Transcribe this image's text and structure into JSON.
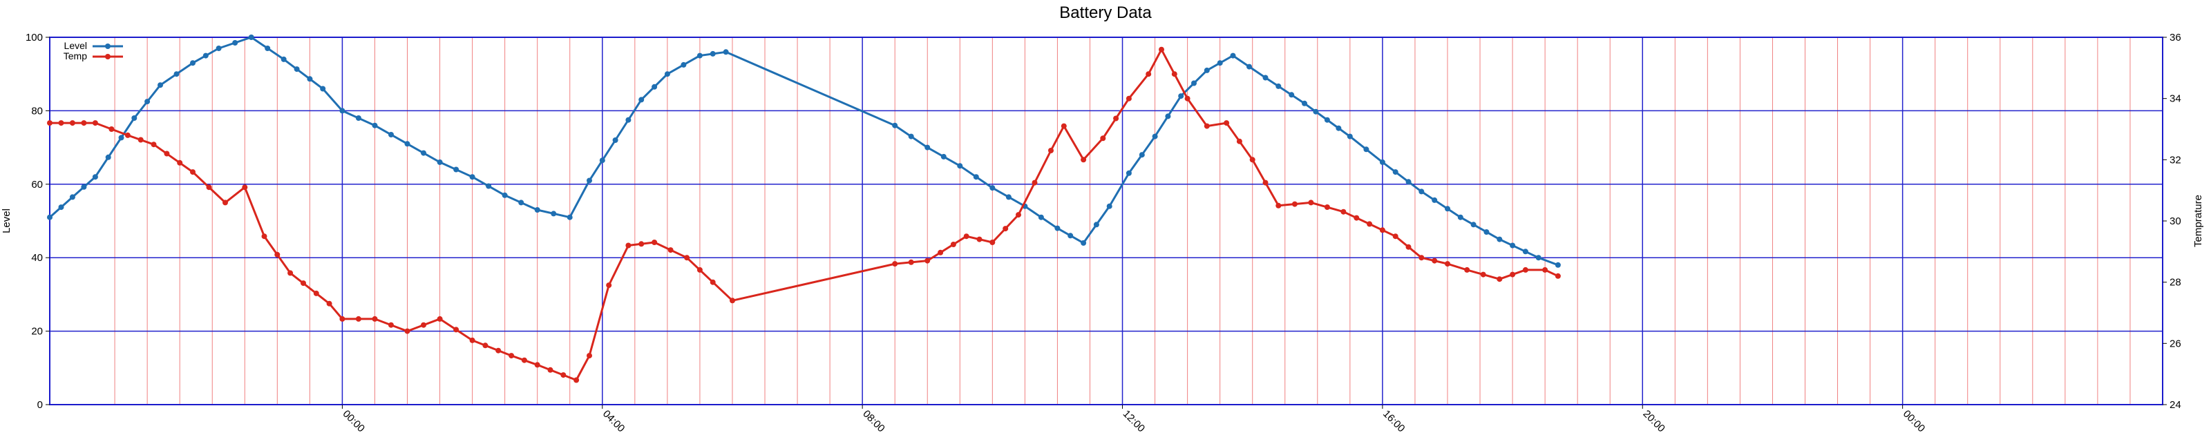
{
  "chart_data": {
    "type": "line",
    "title": "Battery Data",
    "ylabel": "Level",
    "y2label": "Temprature",
    "ylim": [
      0,
      100
    ],
    "y2lim": [
      24,
      36
    ],
    "yticks": [
      "0",
      "20",
      "40",
      "60",
      "80",
      "100"
    ],
    "y2ticks": [
      "24",
      "26",
      "28",
      "30",
      "32",
      "34",
      "36"
    ],
    "xrange_hours": [
      -4.5,
      28
    ],
    "xticks": [
      {
        "label": "00:00",
        "hour": 0
      },
      {
        "label": "04:00",
        "hour": 4
      },
      {
        "label": "08:00",
        "hour": 8
      },
      {
        "label": "12:00",
        "hour": 12
      },
      {
        "label": "16:00",
        "hour": 16
      },
      {
        "label": "20:00",
        "hour": 20
      },
      {
        "label": "00:00",
        "hour": 24
      }
    ],
    "grid": true,
    "legend_position": "top-left",
    "series": [
      {
        "name": "Level",
        "axis": "left",
        "color": "#1f6fb2",
        "points": [
          [
            -4.5,
            51
          ],
          [
            -3.8,
            62
          ],
          [
            -3.2,
            78
          ],
          [
            -2.8,
            87
          ],
          [
            -2.3,
            93
          ],
          [
            -1.9,
            97
          ],
          [
            -1.4,
            100
          ],
          [
            -0.9,
            94
          ],
          [
            -0.3,
            86
          ],
          [
            0.0,
            80
          ],
          [
            0.5,
            76
          ],
          [
            1.0,
            71
          ],
          [
            1.5,
            66
          ],
          [
            2.0,
            62
          ],
          [
            2.5,
            57
          ],
          [
            3.0,
            53
          ],
          [
            3.5,
            51
          ],
          [
            3.8,
            61
          ],
          [
            4.2,
            72
          ],
          [
            4.6,
            83
          ],
          [
            5.0,
            90
          ],
          [
            5.5,
            95
          ],
          [
            5.9,
            96
          ],
          [
            8.5,
            76
          ],
          [
            9.0,
            70
          ],
          [
            9.5,
            65
          ],
          [
            10.0,
            59
          ],
          [
            10.5,
            54
          ],
          [
            11.0,
            48
          ],
          [
            11.4,
            44
          ],
          [
            11.8,
            54
          ],
          [
            12.1,
            63
          ],
          [
            12.5,
            73
          ],
          [
            12.9,
            84
          ],
          [
            13.3,
            91
          ],
          [
            13.7,
            95
          ],
          [
            14.2,
            89
          ],
          [
            14.8,
            82
          ],
          [
            15.5,
            73
          ],
          [
            16.0,
            66
          ],
          [
            16.6,
            58
          ],
          [
            17.2,
            51
          ],
          [
            17.8,
            45
          ],
          [
            18.4,
            40
          ],
          [
            18.7,
            38
          ]
        ]
      },
      {
        "name": "Temp",
        "axis": "right",
        "color": "#d9261c",
        "points": [
          [
            -4.5,
            33.2
          ],
          [
            -3.8,
            33.2
          ],
          [
            -3.3,
            32.8
          ],
          [
            -2.9,
            32.5
          ],
          [
            -2.3,
            31.6
          ],
          [
            -1.8,
            30.6
          ],
          [
            -1.5,
            31.1
          ],
          [
            -1.2,
            29.5
          ],
          [
            -0.8,
            28.3
          ],
          [
            -0.2,
            27.3
          ],
          [
            0.0,
            26.8
          ],
          [
            0.5,
            26.8
          ],
          [
            1.0,
            26.4
          ],
          [
            1.5,
            26.8
          ],
          [
            2.0,
            26.1
          ],
          [
            2.6,
            25.6
          ],
          [
            3.0,
            25.3
          ],
          [
            3.6,
            24.8
          ],
          [
            3.8,
            25.6
          ],
          [
            4.1,
            27.9
          ],
          [
            4.4,
            29.2
          ],
          [
            4.8,
            29.3
          ],
          [
            5.3,
            28.8
          ],
          [
            5.7,
            28.0
          ],
          [
            6.0,
            27.4
          ],
          [
            8.5,
            28.6
          ],
          [
            9.0,
            28.7
          ],
          [
            9.6,
            29.5
          ],
          [
            10.0,
            29.3
          ],
          [
            10.4,
            30.2
          ],
          [
            10.9,
            32.3
          ],
          [
            11.1,
            33.1
          ],
          [
            11.4,
            32.0
          ],
          [
            11.7,
            32.7
          ],
          [
            12.1,
            34.0
          ],
          [
            12.4,
            34.8
          ],
          [
            12.6,
            35.6
          ],
          [
            13.0,
            34.0
          ],
          [
            13.3,
            33.1
          ],
          [
            13.6,
            33.2
          ],
          [
            14.0,
            32.0
          ],
          [
            14.4,
            30.5
          ],
          [
            14.9,
            30.6
          ],
          [
            15.4,
            30.3
          ],
          [
            15.8,
            29.9
          ],
          [
            16.2,
            29.5
          ],
          [
            16.6,
            28.8
          ],
          [
            17.0,
            28.6
          ],
          [
            17.3,
            28.4
          ],
          [
            17.8,
            28.1
          ],
          [
            18.2,
            28.4
          ],
          [
            18.5,
            28.4
          ],
          [
            18.7,
            28.2
          ]
        ]
      }
    ]
  }
}
